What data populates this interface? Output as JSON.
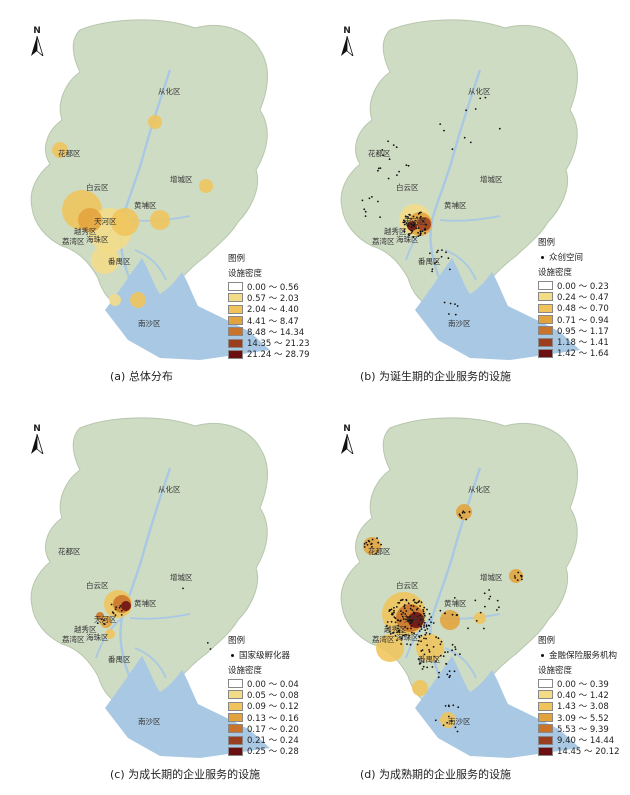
{
  "panels": [
    {
      "caption": "(a) 总体分布",
      "legend_title": "图例",
      "point_label": "",
      "density_label": "设施密度",
      "classes": [
        "0.00 ～ 0.56",
        "0.57 ～ 2.03",
        "2.04 ～ 4.40",
        "4.41 ～ 8.47",
        "8.48 ～ 14.34",
        "14.35 ～ 21.23",
        "21.24 ～ 28.79"
      ]
    },
    {
      "caption": "(b) 为诞生期的企业服务的设施",
      "legend_title": "图例",
      "point_label": "众创空间",
      "density_label": "设施密度",
      "classes": [
        "0.00 ～ 0.23",
        "0.24 ～ 0.47",
        "0.48 ～ 0.70",
        "0.71 ～ 0.94",
        "0.95 ～ 1.17",
        "1.18 ～ 1.41",
        "1.42 ～ 1.64"
      ]
    },
    {
      "caption": "(c) 为成长期的企业服务的设施",
      "legend_title": "图例",
      "point_label": "国家级孵化器",
      "density_label": "设施密度",
      "classes": [
        "0.00 ～ 0.04",
        "0.05 ～ 0.08",
        "0.09 ～ 0.12",
        "0.13 ～ 0.16",
        "0.17 ～ 0.20",
        "0.21 ～ 0.24",
        "0.25 ～ 0.28"
      ]
    },
    {
      "caption": "(d) 为成熟期的企业服务的设施",
      "legend_title": "图例",
      "point_label": "金融保险服务机构",
      "density_label": "设施密度",
      "classes": [
        "0.00 ～ 0.39",
        "0.40 ～ 1.42",
        "1.43 ～ 3.08",
        "3.09 ～ 5.52",
        "5.53 ～ 9.39",
        "9.40 ～ 14.44",
        "14.45 ～ 20.12"
      ]
    }
  ],
  "north_label": "N",
  "districts": [
    "从化区",
    "花都区",
    "增城区",
    "白云区",
    "黄埔区",
    "天河区",
    "越秀区",
    "荔湾区",
    "海珠区",
    "番禺区",
    "南沙区"
  ],
  "colors": {
    "land": "#cfdcc4",
    "land_edge": "#b7c6ad",
    "water": "#a9c8e3",
    "ramp": [
      "#ffffff",
      "#f4dc86",
      "#f0c45a",
      "#e3a33c",
      "#c9742a",
      "#9b3e20",
      "#6b0f12"
    ]
  }
}
